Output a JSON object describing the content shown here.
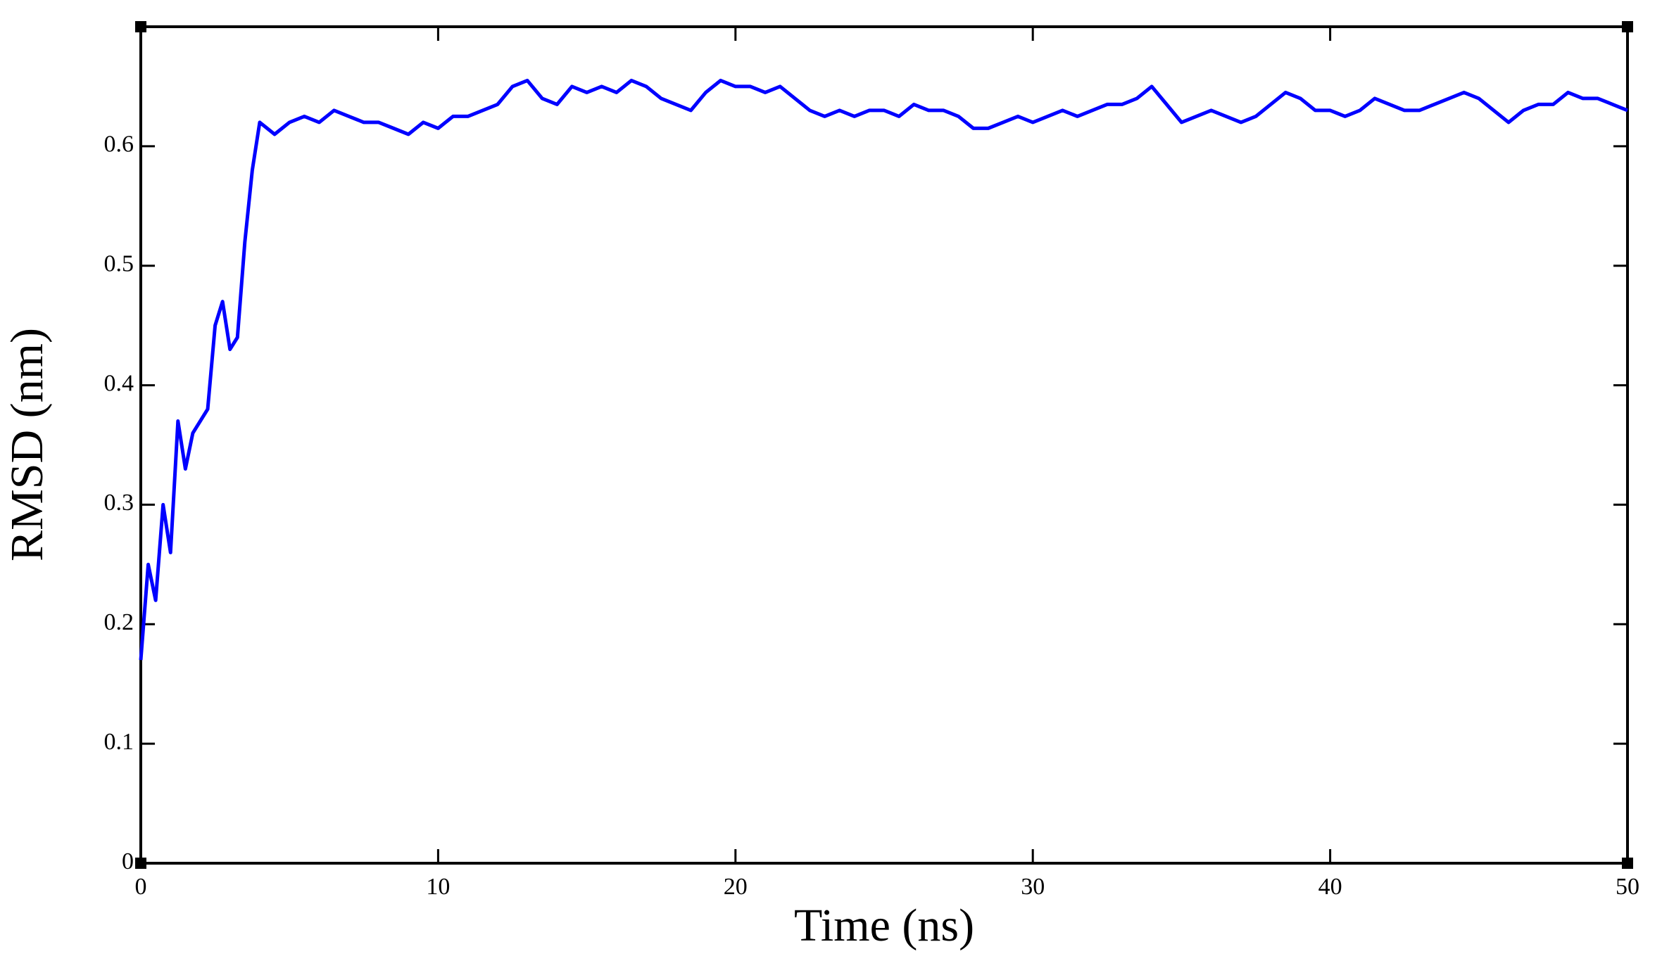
{
  "chart_data": {
    "type": "line",
    "x_label": "Time (ns)",
    "y_label": "RMSD (nm)",
    "xlim": [
      0,
      50
    ],
    "xticks": [
      0,
      10,
      20,
      30,
      40,
      50
    ],
    "ylim": [
      0,
      0.7
    ],
    "yticks": [
      0,
      0.1,
      0.2,
      0.3,
      0.4,
      0.5,
      0.6
    ],
    "grid": false,
    "series": [
      {
        "color": "#0000ff",
        "x": [
          0,
          0.25,
          0.5,
          0.75,
          1,
          1.25,
          1.5,
          1.75,
          2,
          2.25,
          2.5,
          2.75,
          3,
          3.25,
          3.5,
          3.75,
          4,
          4.5,
          5,
          5.5,
          6,
          6.5,
          7,
          7.5,
          8,
          8.5,
          9,
          9.5,
          10,
          10.5,
          11,
          11.5,
          12,
          12.5,
          13,
          13.5,
          14,
          14.5,
          15,
          15.5,
          16,
          16.5,
          17,
          17.5,
          18,
          18.5,
          19,
          19.5,
          20,
          20.5,
          21,
          21.5,
          22,
          22.5,
          23,
          23.5,
          24,
          24.5,
          25,
          25.5,
          26,
          26.5,
          27,
          27.5,
          28,
          28.5,
          29,
          29.5,
          30,
          30.5,
          31,
          31.5,
          32,
          32.5,
          33,
          33.5,
          34,
          34.5,
          35,
          35.5,
          36,
          36.5,
          37,
          37.5,
          38,
          38.5,
          39,
          39.5,
          40,
          40.5,
          41,
          41.5,
          42,
          42.5,
          43,
          43.5,
          44,
          44.5,
          45,
          45.5,
          46,
          46.5,
          47,
          47.5,
          48,
          48.5,
          49,
          49.5,
          50
        ],
        "values": [
          0.17,
          0.25,
          0.22,
          0.3,
          0.26,
          0.37,
          0.33,
          0.36,
          0.37,
          0.38,
          0.45,
          0.47,
          0.43,
          0.44,
          0.52,
          0.58,
          0.62,
          0.61,
          0.62,
          0.625,
          0.62,
          0.63,
          0.625,
          0.62,
          0.62,
          0.615,
          0.61,
          0.62,
          0.615,
          0.625,
          0.625,
          0.63,
          0.635,
          0.65,
          0.655,
          0.64,
          0.635,
          0.65,
          0.645,
          0.65,
          0.645,
          0.655,
          0.65,
          0.64,
          0.635,
          0.63,
          0.645,
          0.655,
          0.65,
          0.65,
          0.645,
          0.65,
          0.64,
          0.63,
          0.625,
          0.63,
          0.625,
          0.63,
          0.63,
          0.625,
          0.635,
          0.63,
          0.63,
          0.625,
          0.615,
          0.615,
          0.62,
          0.625,
          0.62,
          0.625,
          0.63,
          0.625,
          0.63,
          0.635,
          0.635,
          0.64,
          0.65,
          0.635,
          0.62,
          0.625,
          0.63,
          0.625,
          0.62,
          0.625,
          0.635,
          0.645,
          0.64,
          0.63,
          0.63,
          0.625,
          0.63,
          0.64,
          0.635,
          0.63,
          0.63,
          0.635,
          0.64,
          0.645,
          0.64,
          0.63,
          0.62,
          0.63,
          0.635,
          0.635,
          0.645,
          0.64,
          0.64,
          0.635,
          0.63
        ]
      }
    ]
  }
}
